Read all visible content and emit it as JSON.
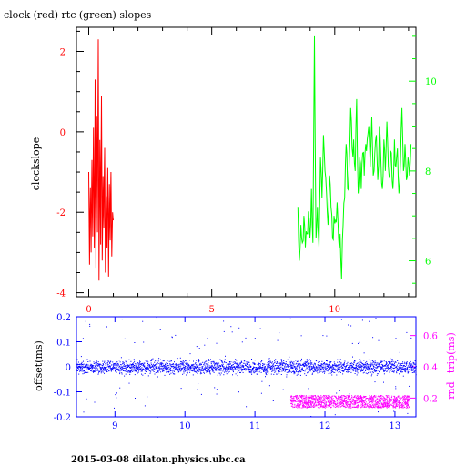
{
  "page": {
    "title": "clock (red) rtc (green) slopes",
    "footer": "2015-03-08  dilaton.physics.ubc.ca"
  },
  "colors": {
    "red": "#ff0000",
    "green": "#00ff00",
    "blue": "#0000ff",
    "magenta": "#ff00ff",
    "black": "#000000"
  },
  "chart_data": [
    {
      "type": "line",
      "title": "clock (red) rtc (green) slopes",
      "ylabel": "clockslope",
      "x_ticks": [
        "0",
        "5",
        "10"
      ],
      "xlim": [
        -0.5,
        13.3
      ],
      "ylim": [
        -4.1,
        2.6
      ],
      "y_ticks": [
        "2",
        "0",
        "-2",
        "-4"
      ],
      "right_axis": {
        "ylim": [
          5.2,
          11.2
        ],
        "ticks": [
          "10",
          "8",
          "6"
        ]
      },
      "grid": false,
      "series": [
        {
          "name": "clock",
          "color": "red",
          "axis": "left",
          "x_range": [
            0.0,
            1.0
          ],
          "values": [
            -1.0,
            -3.3,
            -1.4,
            -3.0,
            -0.7,
            -2.6,
            0.1,
            -2.9,
            1.3,
            -3.4,
            0.4,
            -2.5,
            2.3,
            -3.7,
            -0.2,
            -2.8,
            0.9,
            -3.2,
            -1.1,
            -2.4,
            -0.4,
            -3.5,
            -1.6,
            -2.9,
            -0.9,
            -3.6,
            -1.3,
            -2.7,
            -1.0,
            -3.1,
            -2.0,
            -2.2
          ]
        },
        {
          "name": "rtc",
          "color": "green",
          "axis": "right",
          "x_range": [
            8.5,
            13.1
          ],
          "values": [
            7.2,
            6.0,
            6.8,
            6.4,
            7.0,
            6.3,
            6.6,
            7.1,
            6.5,
            7.6,
            6.4,
            11.0,
            6.5,
            7.2,
            6.3,
            8.3,
            7.4,
            8.8,
            8.0,
            7.5,
            6.8,
            7.9,
            7.2,
            6.5,
            7.0,
            6.9,
            7.3,
            6.5,
            6.6,
            5.6,
            6.8,
            7.4,
            8.6,
            7.6,
            8.1,
            9.4,
            8.5,
            8.7,
            8.0,
            9.6,
            7.5,
            8.3,
            7.6,
            8.4,
            7.9,
            8.6,
            8.7,
            9.0,
            8.1,
            9.2,
            7.9,
            8.4,
            8.8,
            7.8,
            9.0,
            8.3,
            7.6,
            8.7,
            8.0,
            9.1,
            8.1,
            7.9,
            8.4,
            7.6,
            8.7,
            8.1,
            8.5,
            7.5,
            8.2,
            9.4,
            8.0,
            8.6,
            7.8,
            8.3,
            7.9,
            8.6
          ]
        }
      ]
    },
    {
      "type": "scatter",
      "ylabel": "offset(ms)",
      "y2label": "rnd−trip(ms)",
      "xlim": [
        8.45,
        13.3
      ],
      "ylim": [
        -0.2,
        0.2
      ],
      "x_ticks": [
        "9",
        "10",
        "11",
        "12",
        "13"
      ],
      "y_ticks": [
        "0.2",
        "0.1",
        "0",
        "-0.1",
        "-0.2"
      ],
      "right_axis": {
        "ylim": [
          0.08,
          0.72
        ],
        "ticks": [
          "0.6",
          "0.4",
          "0.2"
        ]
      },
      "grid": false,
      "series": [
        {
          "name": "offset",
          "color": "blue",
          "x_range": [
            8.45,
            13.3
          ],
          "center": 0.0,
          "typical_spread": 0.03,
          "outlier_range": [
            -0.2,
            0.2
          ]
        },
        {
          "name": "rnd-trip",
          "color": "magenta",
          "x_range": [
            11.5,
            13.2
          ],
          "typical_range": [
            0.14,
            0.22
          ]
        }
      ]
    }
  ]
}
